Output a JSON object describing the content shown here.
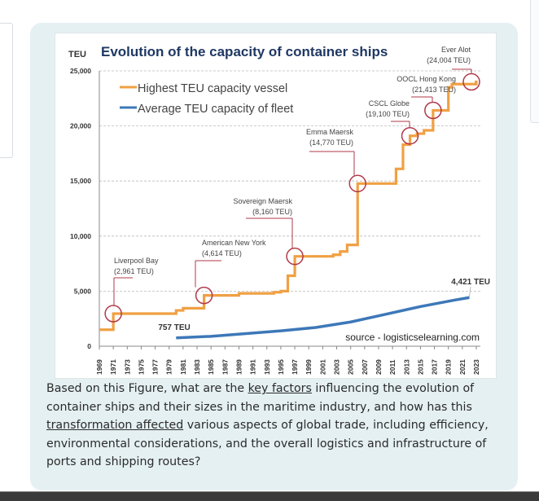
{
  "question": {
    "part1": "Based on this Figure, what are the ",
    "link1": "key factors",
    "part2": " influencing the evolution of container ships and their sizes in the maritime industry, and how has this ",
    "link2": "transformation affected",
    "part3": " various aspects of global trade, including efficiency, environmental considerations, and the overall logistics and infrastructure of ports and shipping routes?"
  },
  "chart_data": {
    "type": "line",
    "title": "Evolution of the capacity of container ships",
    "ylabel": "TEU",
    "xlabel": "",
    "ylim": [
      0,
      25000
    ],
    "xlim": [
      1969,
      2023
    ],
    "yticks": [
      "0",
      "5,000",
      "10,000",
      "15,000",
      "20,000",
      "25,000"
    ],
    "xticks": [
      "1969",
      "1971",
      "1973",
      "1975",
      "1977",
      "1979",
      "1981",
      "1983",
      "1985",
      "1987",
      "1989",
      "1991",
      "1993",
      "1995",
      "1997",
      "1999",
      "2001",
      "2003",
      "2005",
      "2007",
      "2009",
      "2011",
      "2013",
      "2015",
      "2017",
      "2019",
      "2021",
      "2023"
    ],
    "grid": "horizontal dashed",
    "legend_position": "top-left",
    "source": "source - logisticselearning.com",
    "series": [
      {
        "name": "Highest TEU capacity vessel",
        "color": "#f0a044",
        "step": true,
        "x": [
          1969,
          1971,
          1980,
          1981,
          1984,
          1989,
          1994,
          1995,
          1996,
          1997,
          2002.5,
          2003.5,
          2004.5,
          2006,
          2011.5,
          2012.5,
          2013.5,
          2014.5,
          2015.5,
          2016.8,
          2019,
          2019.5,
          2023
        ],
        "y": [
          1500,
          2961,
          3250,
          3450,
          4614,
          4800,
          4900,
          5000,
          6400,
          8160,
          8300,
          8600,
          9200,
          14770,
          16100,
          18300,
          19100,
          19300,
          19600,
          21413,
          23500,
          23800,
          24004
        ]
      },
      {
        "name": "Average TEU capacity of fleet",
        "color": "#3d78b8",
        "step": false,
        "x": [
          1980,
          1985,
          1990,
          1995,
          2000,
          2005,
          2010,
          2015,
          2020,
          2022
        ],
        "y": [
          757,
          900,
          1150,
          1400,
          1700,
          2200,
          2900,
          3600,
          4200,
          4421
        ]
      }
    ],
    "annotations": [
      {
        "name": "Liverpool Bay",
        "value": "(2,961 TEU)",
        "x": 1971,
        "y": 2961
      },
      {
        "name": "American New York",
        "value": "(4,614 TEU)",
        "x": 1984,
        "y": 4614
      },
      {
        "name": "Sovereign Maersk",
        "value": "(8,160 TEU)",
        "x": 1997,
        "y": 8160
      },
      {
        "name": "Emma Maersk",
        "value": "(14,770 TEU)",
        "x": 2006,
        "y": 14770
      },
      {
        "name": "CSCL Globe",
        "value": "(19,100 TEU)",
        "x": 2013.5,
        "y": 19100
      },
      {
        "name": "OOCL Hong Kong",
        "value": "(21,413 TEU)",
        "x": 2016.8,
        "y": 21413
      },
      {
        "name": "Ever Alot",
        "value": "(24,004 TEU)",
        "x": 2023,
        "y": 24004
      }
    ],
    "point_labels": [
      {
        "text": "757 TEU",
        "x": 1980,
        "y": 757
      },
      {
        "text": "4,421 TEU",
        "x": 2022,
        "y": 4421
      }
    ],
    "annotation_color": "#b0394a"
  }
}
